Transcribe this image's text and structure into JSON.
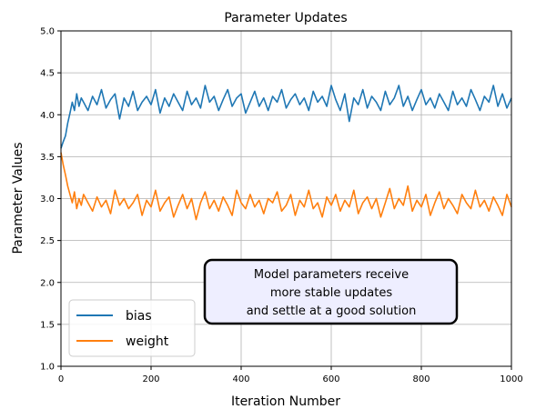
{
  "chart_data": {
    "type": "line",
    "title": "Parameter Updates",
    "xlabel": "Iteration Number",
    "ylabel": "Parameter Values",
    "xlim": [
      0,
      1000
    ],
    "ylim": [
      1.0,
      5.0
    ],
    "xticks": [
      0,
      200,
      400,
      600,
      800,
      1000
    ],
    "yticks": [
      1.0,
      1.5,
      2.0,
      2.5,
      3.0,
      3.5,
      4.0,
      4.5,
      5.0
    ],
    "xtick_labels": [
      "0",
      "200",
      "400",
      "600",
      "800",
      "1000"
    ],
    "ytick_labels": [
      "1.0",
      "1.5",
      "2.0",
      "2.5",
      "3.0",
      "3.5",
      "4.0",
      "4.5",
      "5.0"
    ],
    "grid": true,
    "legend_position": "lower-left",
    "series": [
      {
        "name": "bias",
        "color": "#1f77b4",
        "x": [
          0,
          5,
          10,
          15,
          20,
          25,
          30,
          35,
          40,
          45,
          50,
          60,
          70,
          80,
          90,
          100,
          110,
          120,
          130,
          140,
          150,
          160,
          170,
          180,
          190,
          200,
          210,
          220,
          230,
          240,
          250,
          260,
          270,
          280,
          290,
          300,
          310,
          320,
          330,
          340,
          350,
          360,
          370,
          380,
          390,
          400,
          410,
          420,
          430,
          440,
          450,
          460,
          470,
          480,
          490,
          500,
          510,
          520,
          530,
          540,
          550,
          560,
          570,
          580,
          590,
          600,
          610,
          620,
          630,
          640,
          650,
          660,
          670,
          680,
          690,
          700,
          710,
          720,
          730,
          740,
          750,
          760,
          770,
          780,
          790,
          800,
          810,
          820,
          830,
          840,
          850,
          860,
          870,
          880,
          890,
          900,
          910,
          920,
          930,
          940,
          950,
          960,
          970,
          980,
          990,
          1000
        ],
        "values": [
          3.6,
          3.68,
          3.75,
          3.9,
          4.02,
          4.15,
          4.05,
          4.25,
          4.1,
          4.2,
          4.15,
          4.05,
          4.22,
          4.12,
          4.3,
          4.08,
          4.18,
          4.25,
          3.95,
          4.2,
          4.1,
          4.28,
          4.05,
          4.15,
          4.22,
          4.12,
          4.3,
          4.02,
          4.2,
          4.1,
          4.25,
          4.15,
          4.05,
          4.28,
          4.12,
          4.2,
          4.08,
          4.35,
          4.15,
          4.22,
          4.05,
          4.18,
          4.3,
          4.1,
          4.2,
          4.25,
          4.02,
          4.15,
          4.28,
          4.1,
          4.2,
          4.05,
          4.22,
          4.15,
          4.3,
          4.08,
          4.18,
          4.25,
          4.12,
          4.2,
          4.05,
          4.28,
          4.15,
          4.22,
          4.1,
          4.35,
          4.18,
          4.05,
          4.25,
          3.92,
          4.2,
          4.12,
          4.3,
          4.08,
          4.22,
          4.15,
          4.05,
          4.28,
          4.12,
          4.2,
          4.35,
          4.1,
          4.22,
          4.05,
          4.18,
          4.3,
          4.12,
          4.2,
          4.08,
          4.25,
          4.15,
          4.05,
          4.28,
          4.12,
          4.2,
          4.1,
          4.3,
          4.18,
          4.05,
          4.22,
          4.15,
          4.35,
          4.1,
          4.25,
          4.08,
          4.2
        ]
      },
      {
        "name": "weight",
        "color": "#ff7f0e",
        "x": [
          0,
          5,
          10,
          15,
          20,
          25,
          30,
          35,
          40,
          45,
          50,
          60,
          70,
          80,
          90,
          100,
          110,
          120,
          130,
          140,
          150,
          160,
          170,
          180,
          190,
          200,
          210,
          220,
          230,
          240,
          250,
          260,
          270,
          280,
          290,
          300,
          310,
          320,
          330,
          340,
          350,
          360,
          370,
          380,
          390,
          400,
          410,
          420,
          430,
          440,
          450,
          460,
          470,
          480,
          490,
          500,
          510,
          520,
          530,
          540,
          550,
          560,
          570,
          580,
          590,
          600,
          610,
          620,
          630,
          640,
          650,
          660,
          670,
          680,
          690,
          700,
          710,
          720,
          730,
          740,
          750,
          760,
          770,
          780,
          790,
          800,
          810,
          820,
          830,
          840,
          850,
          860,
          870,
          880,
          890,
          900,
          910,
          920,
          930,
          940,
          950,
          960,
          970,
          980,
          990,
          1000
        ],
        "values": [
          3.55,
          3.4,
          3.28,
          3.15,
          3.05,
          2.95,
          3.08,
          2.88,
          3.0,
          2.92,
          3.05,
          2.95,
          2.85,
          3.02,
          2.9,
          2.98,
          2.82,
          3.1,
          2.92,
          3.0,
          2.88,
          2.95,
          3.05,
          2.8,
          2.98,
          2.9,
          3.1,
          2.85,
          2.95,
          3.02,
          2.78,
          2.92,
          3.05,
          2.88,
          3.0,
          2.75,
          2.95,
          3.08,
          2.88,
          2.98,
          2.85,
          3.02,
          2.92,
          2.8,
          3.1,
          2.95,
          2.88,
          3.05,
          2.9,
          2.98,
          2.82,
          3.0,
          2.95,
          3.08,
          2.85,
          2.92,
          3.05,
          2.8,
          2.98,
          2.9,
          3.1,
          2.88,
          2.95,
          2.78,
          3.02,
          2.92,
          3.05,
          2.85,
          2.98,
          2.9,
          3.1,
          2.82,
          2.95,
          3.02,
          2.88,
          3.0,
          2.78,
          2.95,
          3.12,
          2.88,
          3.0,
          2.92,
          3.15,
          2.85,
          2.98,
          2.9,
          3.05,
          2.8,
          2.95,
          3.08,
          2.88,
          3.0,
          2.92,
          2.82,
          3.05,
          2.95,
          2.88,
          3.1,
          2.9,
          2.98,
          2.85,
          3.02,
          2.92,
          2.8,
          3.05,
          2.9
        ]
      }
    ],
    "annotation": {
      "lines": [
        "Model parameters receive",
        "more stable updates",
        "and settle at a good solution"
      ],
      "background": "#eeeeff",
      "border": "#000000"
    }
  }
}
